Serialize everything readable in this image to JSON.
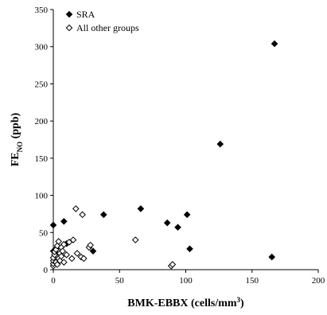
{
  "chart_data": {
    "type": "scatter",
    "title": "",
    "xlabel_main": "BMK-EBBX (cells/mm",
    "xlabel_sup": "3",
    "xlabel_close": ")",
    "ylabel_main": "FE",
    "ylabel_sub": "NO",
    "ylabel_unit": " (ppb)",
    "xlim": [
      0,
      200
    ],
    "ylim": [
      0,
      350
    ],
    "xticks": [
      0,
      50,
      100,
      150,
      200
    ],
    "yticks": [
      0,
      50,
      100,
      150,
      200,
      250,
      300,
      350
    ],
    "grid": false,
    "legend_position": "top-left",
    "series": [
      {
        "name": "SRA",
        "marker": "filled-diamond",
        "color": "#000000",
        "points": [
          [
            0,
            60
          ],
          [
            0,
            25
          ],
          [
            1,
            20
          ],
          [
            2,
            28
          ],
          [
            8,
            65
          ],
          [
            10,
            35
          ],
          [
            30,
            25
          ],
          [
            38,
            74
          ],
          [
            66,
            82
          ],
          [
            86,
            63
          ],
          [
            94,
            57
          ],
          [
            101,
            74
          ],
          [
            103,
            28
          ],
          [
            126,
            169
          ],
          [
            165,
            17
          ],
          [
            167,
            304
          ]
        ]
      },
      {
        "name": "All other groups",
        "marker": "open-diamond",
        "color": "#000000",
        "points": [
          [
            0,
            5
          ],
          [
            0,
            8
          ],
          [
            0,
            12
          ],
          [
            0,
            16
          ],
          [
            1,
            20
          ],
          [
            1,
            24
          ],
          [
            2,
            10
          ],
          [
            2,
            27
          ],
          [
            3,
            32
          ],
          [
            3,
            7
          ],
          [
            4,
            15
          ],
          [
            4,
            38
          ],
          [
            5,
            22
          ],
          [
            5,
            12
          ],
          [
            6,
            30
          ],
          [
            6,
            18
          ],
          [
            7,
            25
          ],
          [
            8,
            10
          ],
          [
            8,
            34
          ],
          [
            10,
            20
          ],
          [
            12,
            37
          ],
          [
            14,
            15
          ],
          [
            15,
            40
          ],
          [
            17,
            82
          ],
          [
            18,
            22
          ],
          [
            21,
            17
          ],
          [
            22,
            74
          ],
          [
            23,
            15
          ],
          [
            27,
            30
          ],
          [
            28,
            33
          ],
          [
            62,
            40
          ],
          [
            89,
            5
          ],
          [
            90,
            7
          ]
        ]
      }
    ]
  }
}
